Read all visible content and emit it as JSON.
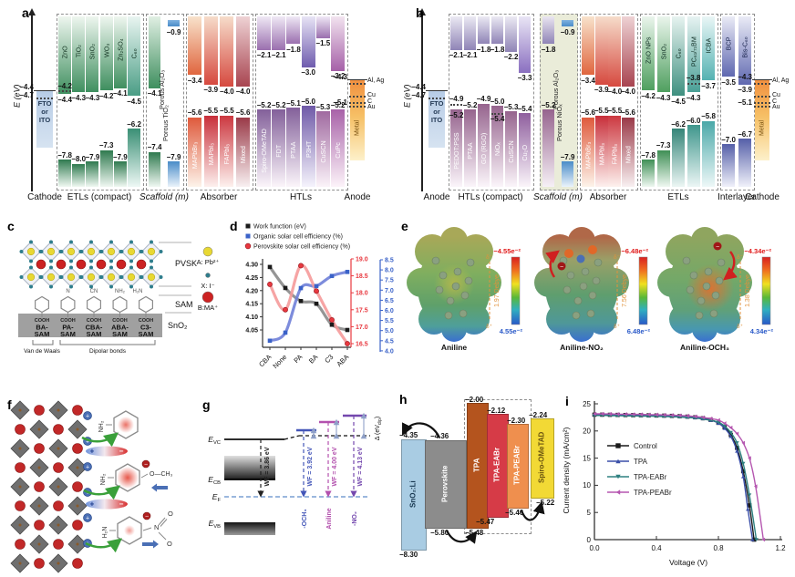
{
  "panel_a": {
    "tag": "a",
    "axis_label": "E (eV)",
    "cathode": {
      "section": "Cathode",
      "label_lines": [
        "FTO",
        "or",
        "ITO"
      ],
      "tick_top": "−4.4",
      "tick_dot": "−4.7"
    },
    "etl": {
      "section": "ETLs (compact)",
      "bars": [
        {
          "label": "ZnO",
          "cb": "−4.4",
          "vb": "−7.8",
          "dot": {
            "e": "−4.2",
            "pos": "above"
          }
        },
        {
          "label": "TiO₂",
          "cb": "−4.3",
          "vb": "−8.0"
        },
        {
          "label": "SnO₂",
          "cb": "−4.3",
          "vb": "−7.9"
        },
        {
          "label": "WO₃",
          "cb": "−4.2",
          "vb": "−7.3"
        },
        {
          "label": "Zn₂SO₄",
          "cb": "−4.1",
          "vb": "−7.9"
        },
        {
          "label": "C₆₀",
          "cb": "−4.5",
          "vb": "−6.2"
        }
      ]
    },
    "scaffold": {
      "section": "Scaffold (m)",
      "bars": [
        {
          "label": "Porous TiO₂",
          "cb": "−4.1",
          "vb": "−7.4"
        },
        {
          "label": "Porous Al₂O₃",
          "cb": "−0.9",
          "vb": "−7.9",
          "float_cb": true
        }
      ]
    },
    "absorber": {
      "section": "Absorber",
      "bars": [
        {
          "label": "MAPbBr₃",
          "cb": "−3.4",
          "vb": "−5.6"
        },
        {
          "label": "MAPbI₃",
          "cb": "−3.9",
          "vb": "−5.5"
        },
        {
          "label": "FAPbI₃",
          "cb": "−4.0",
          "vb": "−5.5"
        },
        {
          "label": "Mixed",
          "cb": "−4.0",
          "vb": "−5.6"
        }
      ]
    },
    "htl": {
      "section": "HTLs",
      "bars": [
        {
          "label": "Spiro-OMeTAD",
          "cb": "−2.1",
          "vb": "−5.2"
        },
        {
          "label": "FDT",
          "cb": "−2.1",
          "vb": "−5.2"
        },
        {
          "label": "PTAA",
          "cb": "−1.8",
          "vb": "−5.1"
        },
        {
          "label": "P3HT",
          "cb": "−3.0",
          "vb": "−5.0"
        },
        {
          "label": "CuSCN",
          "cb": "−1.5",
          "vb": "−5.3"
        },
        {
          "label": "CuPc",
          "cb": "−3.2",
          "vb": "−5.2"
        }
      ]
    },
    "anode": {
      "section": "Anode",
      "bar_label": "Metal",
      "tick_top": "−4.3",
      "tick_bot": "−5.1",
      "metals": [
        "Al, Ag",
        "Cu",
        "C",
        "Au"
      ]
    }
  },
  "panel_b": {
    "tag": "b",
    "axis_label": "E (eV)",
    "anode": {
      "section": "Anode",
      "label_lines": [
        "FTO",
        "or",
        "ITO"
      ],
      "tick_top": "−4.4",
      "tick_dot": "−4.7"
    },
    "htl": {
      "section": "HTLs (compact)",
      "bars": [
        {
          "label": "PEDOT:PSS",
          "cb": "−2.1",
          "vb": "−5.2",
          "dot": {
            "e": "−4.9",
            "pos": "above"
          },
          "vb_in": true
        },
        {
          "label": "PTAA",
          "cb": "−2.1",
          "vb": "−5.2"
        },
        {
          "label": "GO (RGO)",
          "cb": "−1.8",
          "vb": "−4.9"
        },
        {
          "label": "NiOₓ",
          "cb": "−1.8",
          "vb": "−5.0",
          "dot": {
            "e": "−5.4",
            "pos": "below"
          }
        },
        {
          "label": "CuSCN",
          "cb": "−2.2",
          "vb": "−5.3"
        },
        {
          "label": "Cu₂O",
          "cb": "−3.3",
          "vb": "−5.4"
        }
      ]
    },
    "scaffold": {
      "section": "Scaffold (m)",
      "bars": [
        {
          "label": "Porous NiOₓ",
          "cb": "−1.8",
          "vb": "−5.2"
        },
        {
          "label": "Porous Al₂O₃",
          "cb": "−0.9",
          "vb": "−7.9",
          "float_cb": true
        }
      ]
    },
    "absorber": {
      "section": "Absorber",
      "bars": [
        {
          "label": "MAPbBr₃",
          "cb": "−3.4",
          "vb": "−5.6"
        },
        {
          "label": "MAPbI₃",
          "cb": "−3.9",
          "vb": "−5.5"
        },
        {
          "label": "FAPbI₃",
          "cb": "−4.0",
          "vb": "−5.5"
        },
        {
          "label": "Mixed",
          "cb": "−4.0",
          "vb": "−5.6"
        }
      ]
    },
    "etl": {
      "section": "ETLs",
      "bars": [
        {
          "label": "ZnO NPs",
          "cb": "−4.2",
          "vb": "−7.8"
        },
        {
          "label": "SnO₂",
          "cb": "−4.3",
          "vb": "−7.3"
        },
        {
          "label": "C₆₀",
          "cb": "−4.5",
          "vb": "−6.2"
        },
        {
          "label": "PC₆₁/₇₁BM",
          "cb": "−4.3",
          "vb": "−6.0",
          "dot": {
            "e": "−3.8",
            "pos": "above"
          }
        },
        {
          "label": "ICBA",
          "cb": "−3.7",
          "vb": "−5.8"
        }
      ]
    },
    "interlayer": {
      "section": "Interlayer",
      "bars": [
        {
          "label": "BCP",
          "cb": "−3.5",
          "vb": "−7.0"
        },
        {
          "label": "Bis-C₆₀",
          "cb": "−3.9",
          "vb": "−6.7"
        }
      ]
    },
    "cathode": {
      "section": "Cathode",
      "bar_label": "Metal",
      "tick_top": "−4.3",
      "tick_bot": "−5.1",
      "metals": [
        "Al, Ag",
        "Cu",
        "C",
        "Au"
      ]
    }
  },
  "panel_c": {
    "tag": "c",
    "layer_labels": [
      "PVSK",
      "SAM",
      "SnO₂"
    ],
    "legend": [
      "A: Pb²⁺",
      "X: I⁻",
      "B:MA⁺"
    ],
    "legend_colors": [
      "#e8d832",
      "#2e7d8c",
      "#cc2222"
    ],
    "sam_labels": [
      [
        "BA-",
        "SAM"
      ],
      [
        "PA-",
        "SAM"
      ],
      [
        "CBA-",
        "SAM"
      ],
      [
        "ABA-",
        "SAM"
      ],
      [
        "C3-",
        "SAM"
      ]
    ],
    "substituents": [
      "",
      "N",
      "CN",
      "NH₂",
      "H₂N"
    ],
    "anchor": "COOH",
    "bond_labels": [
      "Van de Waals",
      "Dipolar bonds"
    ]
  },
  "panel_e": {
    "tag": "e",
    "delta_neg": "δ⁻",
    "delta_pos": "δ⁺",
    "items": [
      {
        "name": "Aniline",
        "neg": "−4.55e⁻²",
        "pos": "4.55e⁻²",
        "dipole": "1.97 Debye"
      },
      {
        "name": "Aniline-NO₂",
        "neg": "−6.48e⁻²",
        "pos": "6.48e⁻²",
        "dipole": "7.56 Debye"
      },
      {
        "name": "Aniline-OCH₃",
        "neg": "−4.34e⁻²",
        "pos": "4.34e⁻²",
        "dipole": "1.38 Debye"
      }
    ]
  },
  "panel_f": {
    "tag": "f",
    "dipole_plus": "+",
    "dipole_minus": "−",
    "molecules": [
      {
        "amine": "NH₂",
        "tail": ""
      },
      {
        "amine": "NH₂",
        "tail": "O—CH₃",
        "charge": "−"
      },
      {
        "amine": "H₂N",
        "tail": "N",
        "tail_o": [
          "O",
          "O"
        ],
        "charge": "−"
      }
    ]
  },
  "panel_g": {
    "tag": "g",
    "levels": {
      "evc": [
        "E",
        "VC"
      ],
      "ecb": [
        "E",
        "CB"
      ],
      "ef": [
        "E",
        "F"
      ],
      "evb": [
        "E",
        "VB"
      ]
    },
    "delta": [
      "Δ (eV",
      "dip",
      ")"
    ],
    "entries": [
      {
        "wf": "WF = 3.86 eV",
        "mol": "",
        "color": "#222222"
      },
      {
        "wf": "WF = 3.92 eV",
        "mol": "-OCH₃",
        "color": "#4456b8"
      },
      {
        "wf": "WF = 4.00 eV",
        "mol": "Aniline",
        "color": "#b351ae"
      },
      {
        "wf": "WF = 4.13 eV",
        "mol": "-NO₂",
        "color": "#7448ae"
      }
    ]
  },
  "panel_h": {
    "tag": "h",
    "bars": [
      {
        "label": "SnO₂:Li",
        "top": "−4.35",
        "bottom": "−8.30"
      },
      {
        "label": "Perovskite",
        "top": "−4.36",
        "bottom": "−5.80"
      },
      {
        "label": "TPA",
        "top": "−2.00",
        "bottom": "−5.48"
      },
      {
        "label": "TPA-EABr",
        "top": "−2.12",
        "bottom": "−5.47"
      },
      {
        "label": "TPA-PEABr",
        "top": "−2.30",
        "bottom": "−5.46"
      },
      {
        "label": "Spiro-OMeTAD",
        "top": "−2.24",
        "bottom": "−5.22"
      }
    ]
  },
  "panel_d": {
    "tag": "d"
  },
  "panel_i": {
    "tag": "i"
  },
  "chart_data": [
    {
      "id": "d",
      "type": "scatter",
      "categories": [
        "CBA",
        "None",
        "PA",
        "BA",
        "C3",
        "ABA"
      ],
      "series": [
        {
          "name": "Work function (eV)",
          "axis": "left",
          "marker": "square",
          "color": "#1a1a1a",
          "fit_color": "#8a8a8a",
          "values": [
            4.29,
            4.21,
            4.16,
            4.15,
            4.07,
            4.05
          ]
        },
        {
          "name": "Organic solar cell efficiency (%)",
          "axis": "right2",
          "marker": "square",
          "color": "#3a62c8",
          "fit_color": "#6f7fd8",
          "values": [
            4.5,
            4.9,
            7.1,
            7.2,
            7.7,
            7.9
          ]
        },
        {
          "name": "Perovskite solar cell efficiency (%)",
          "axis": "right1",
          "marker": "circle",
          "color": "#e8383f",
          "fit_color": "#f59a9a",
          "values": [
            18.25,
            17.5,
            18.8,
            18.05,
            17.2,
            16.5
          ]
        }
      ],
      "axes": {
        "left": {
          "ticks": [
            4.3,
            4.25,
            4.2,
            4.15,
            4.1,
            4.05
          ],
          "decimals": 2,
          "color": "#1a1a1a"
        },
        "right1": {
          "ticks": [
            19.0,
            18.5,
            18.0,
            17.5,
            17.0,
            16.5
          ],
          "decimals": 1,
          "color": "#e8383f"
        },
        "right2": {
          "ticks": [
            8.5,
            8.0,
            7.5,
            7.0,
            6.5,
            6.0,
            5.5,
            5.0,
            4.5,
            4.0
          ],
          "decimals": 1,
          "color": "#3a62c8"
        }
      }
    },
    {
      "id": "i",
      "type": "line",
      "xlabel": "Voltage (V)",
      "ylabel": "Current density (mA/cm²)",
      "xlim": [
        0,
        1.2
      ],
      "ylim": [
        0,
        25
      ],
      "xticks": [
        0.0,
        0.4,
        0.8,
        1.2
      ],
      "yticks": [
        0,
        5,
        10,
        15,
        20,
        25
      ],
      "series": [
        {
          "name": "Control",
          "color": "#1a1a1a",
          "marker": "square",
          "points": [
            [
              0,
              23.0
            ],
            [
              0.05,
              23.0
            ],
            [
              0.1,
              22.98
            ],
            [
              0.15,
              22.96
            ],
            [
              0.2,
              22.94
            ],
            [
              0.25,
              22.92
            ],
            [
              0.3,
              22.9
            ],
            [
              0.35,
              22.88
            ],
            [
              0.4,
              22.85
            ],
            [
              0.45,
              22.82
            ],
            [
              0.5,
              22.78
            ],
            [
              0.55,
              22.72
            ],
            [
              0.6,
              22.64
            ],
            [
              0.65,
              22.52
            ],
            [
              0.7,
              22.34
            ],
            [
              0.75,
              22.05
            ],
            [
              0.8,
              21.5
            ],
            [
              0.84,
              20.7
            ],
            [
              0.88,
              19.3
            ],
            [
              0.92,
              16.9
            ],
            [
              0.96,
              12.6
            ],
            [
              1.0,
              6.3
            ],
            [
              1.03,
              0
            ]
          ]
        },
        {
          "name": "TPA",
          "color": "#3a4fa8",
          "marker": "triangle-up",
          "points": [
            [
              0,
              23.05
            ],
            [
              0.05,
              23.05
            ],
            [
              0.1,
              23.03
            ],
            [
              0.15,
              23.0
            ],
            [
              0.2,
              22.98
            ],
            [
              0.25,
              22.95
            ],
            [
              0.3,
              22.92
            ],
            [
              0.35,
              22.9
            ],
            [
              0.4,
              22.87
            ],
            [
              0.45,
              22.83
            ],
            [
              0.5,
              22.78
            ],
            [
              0.55,
              22.7
            ],
            [
              0.6,
              22.6
            ],
            [
              0.65,
              22.48
            ],
            [
              0.7,
              22.28
            ],
            [
              0.75,
              21.98
            ],
            [
              0.8,
              21.45
            ],
            [
              0.84,
              20.5
            ],
            [
              0.88,
              19.0
            ],
            [
              0.92,
              16.3
            ],
            [
              0.96,
              11.6
            ],
            [
              0.99,
              5.6
            ],
            [
              1.02,
              0
            ]
          ]
        },
        {
          "name": "TPA-EABr",
          "color": "#2e8080",
          "marker": "triangle-down",
          "points": [
            [
              0,
              22.85
            ],
            [
              0.05,
              22.85
            ],
            [
              0.1,
              22.83
            ],
            [
              0.15,
              22.81
            ],
            [
              0.2,
              22.79
            ],
            [
              0.25,
              22.77
            ],
            [
              0.3,
              22.75
            ],
            [
              0.35,
              22.72
            ],
            [
              0.4,
              22.7
            ],
            [
              0.45,
              22.66
            ],
            [
              0.5,
              22.62
            ],
            [
              0.55,
              22.56
            ],
            [
              0.6,
              22.48
            ],
            [
              0.65,
              22.38
            ],
            [
              0.7,
              22.2
            ],
            [
              0.75,
              21.95
            ],
            [
              0.8,
              21.6
            ],
            [
              0.84,
              20.9
            ],
            [
              0.88,
              19.7
            ],
            [
              0.92,
              17.8
            ],
            [
              0.96,
              14.0
            ],
            [
              1.0,
              8.2
            ],
            [
              1.045,
              0
            ]
          ]
        },
        {
          "name": "TPA-PEABr",
          "color": "#b557b0",
          "marker": "triangle-left",
          "points": [
            [
              0,
              23.15
            ],
            [
              0.05,
              23.15
            ],
            [
              0.1,
              23.13
            ],
            [
              0.15,
              23.11
            ],
            [
              0.2,
              23.09
            ],
            [
              0.25,
              23.07
            ],
            [
              0.3,
              23.05
            ],
            [
              0.35,
              23.02
            ],
            [
              0.4,
              23.0
            ],
            [
              0.45,
              22.96
            ],
            [
              0.5,
              22.92
            ],
            [
              0.55,
              22.86
            ],
            [
              0.6,
              22.78
            ],
            [
              0.65,
              22.66
            ],
            [
              0.7,
              22.5
            ],
            [
              0.75,
              22.28
            ],
            [
              0.8,
              22.0
            ],
            [
              0.84,
              21.4
            ],
            [
              0.88,
              20.6
            ],
            [
              0.92,
              19.5
            ],
            [
              0.96,
              17.8
            ],
            [
              1.0,
              15.0
            ],
            [
              1.04,
              9.8
            ],
            [
              1.09,
              0
            ]
          ]
        }
      ]
    }
  ]
}
